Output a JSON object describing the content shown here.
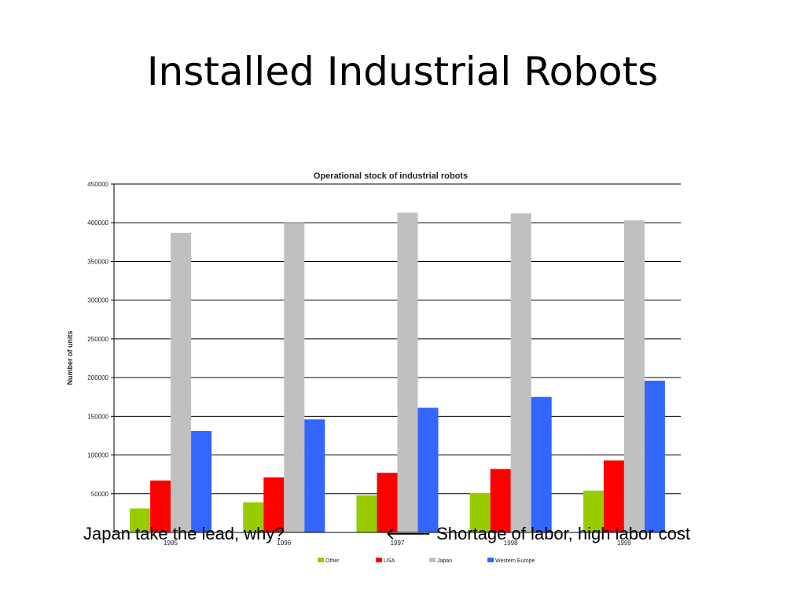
{
  "slide": {
    "title": "Installed Industrial Robots",
    "caption_left": "Japan take the lead, why?",
    "caption_right": "🡐 Shortage of labor, high labor cost"
  },
  "chart_data": {
    "type": "bar",
    "title": "Operational stock of industrial robots",
    "xlabel": "",
    "ylabel": "Number of units",
    "categories": [
      "1995",
      "1996",
      "1997",
      "1998",
      "1999"
    ],
    "ylim": [
      0,
      450000
    ],
    "yticks": [
      50000,
      100000,
      150000,
      200000,
      250000,
      300000,
      350000,
      400000,
      450000
    ],
    "grid": true,
    "legend_position": "bottom",
    "series": [
      {
        "name": "Other",
        "color": "#99cc00",
        "values": [
          31000,
          39000,
          48000,
          51000,
          54000
        ]
      },
      {
        "name": "USA",
        "color": "#ff0000",
        "values": [
          67000,
          71000,
          77000,
          82000,
          93000
        ]
      },
      {
        "name": "Japan",
        "color": "#c0c0c0",
        "values": [
          387000,
          400000,
          413000,
          412000,
          403000
        ]
      },
      {
        "name": "Western Europe",
        "color": "#3366ff",
        "values": [
          131000,
          146000,
          161000,
          175000,
          196000
        ]
      }
    ]
  }
}
